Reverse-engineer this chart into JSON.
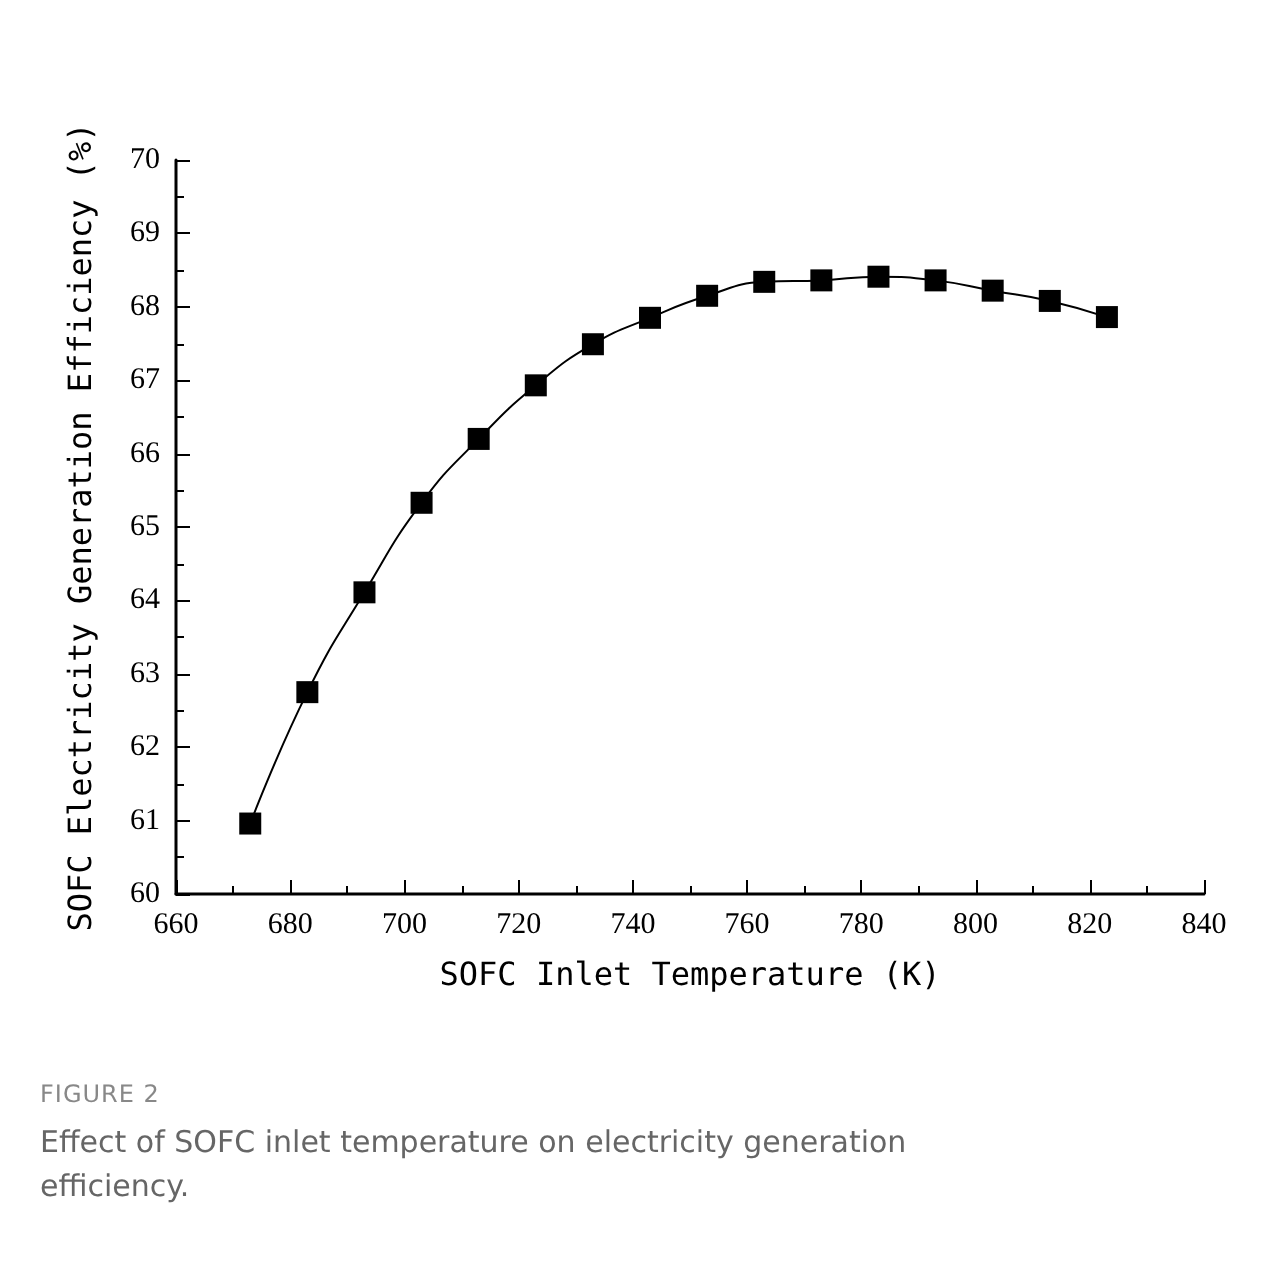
{
  "chart_data": {
    "type": "line",
    "xlabel": "SOFC Inlet Temperature (K)",
    "ylabel": "SOFC Electricity Generation Efficiency (%)",
    "x": [
      673,
      683,
      693,
      703,
      713,
      723,
      733,
      743,
      753,
      763,
      773,
      783,
      793,
      803,
      813,
      823
    ],
    "series": [
      {
        "color": "#000000",
        "values": [
          60.96,
          62.75,
          64.11,
          65.33,
          66.2,
          66.93,
          67.49,
          67.85,
          68.15,
          68.34,
          68.36,
          68.41,
          68.36,
          68.22,
          68.08,
          67.86
        ]
      }
    ],
    "xlim": [
      660,
      840
    ],
    "xticks": [
      660,
      680,
      700,
      720,
      740,
      760,
      780,
      800,
      820,
      840
    ],
    "ylim": [
      60,
      70
    ],
    "yticks": [
      60,
      61,
      62,
      63,
      64,
      65,
      66,
      67,
      68,
      69,
      70
    ],
    "marker": "square",
    "line_style": "solid",
    "grid": false,
    "annotations": [
      "FIGURE 2",
      "Effect of SOFC inlet temperature on electricity generation efficiency."
    ]
  }
}
